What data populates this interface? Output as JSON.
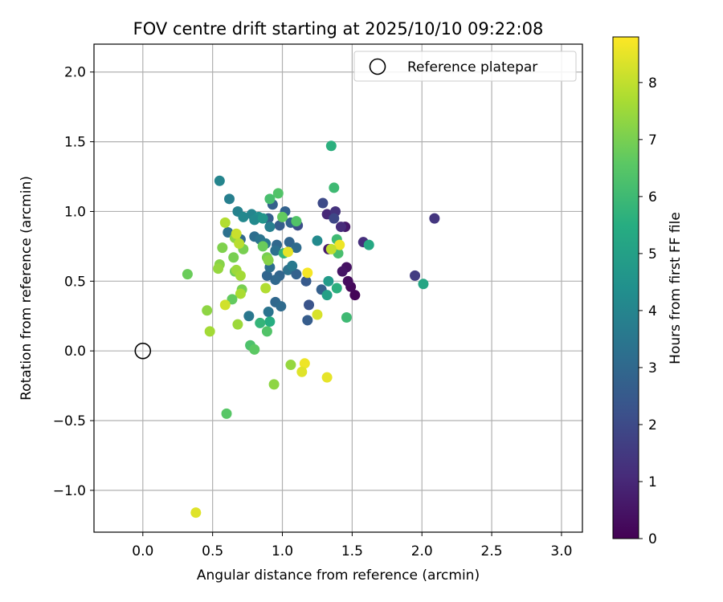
{
  "chart_data": {
    "type": "scatter",
    "title": "FOV centre drift starting at 2025/10/10 09:22:08",
    "xlabel": "Angular distance from reference (arcmin)",
    "ylabel": "Rotation from reference (arcmin)",
    "xlim": [
      -0.35,
      3.15
    ],
    "ylim": [
      -1.3,
      2.2
    ],
    "xticks": [
      0.0,
      0.5,
      1.0,
      1.5,
      2.0,
      2.5,
      3.0
    ],
    "xtick_labels": [
      "0.0",
      "0.5",
      "1.0",
      "1.5",
      "2.0",
      "2.5",
      "3.0"
    ],
    "yticks": [
      -1.0,
      -0.5,
      0.0,
      0.5,
      1.0,
      1.5,
      2.0
    ],
    "ytick_labels": [
      "−1.0",
      "−0.5",
      "0.0",
      "0.5",
      "1.0",
      "1.5",
      "2.0"
    ],
    "grid": true,
    "legend": {
      "location": "upper right",
      "entries": [
        "Reference platepar"
      ]
    },
    "reference": {
      "x": 0.0,
      "y": 0.0,
      "label": "Reference platepar"
    },
    "colorbar": {
      "label": "Hours from first FF file",
      "range": [
        0,
        8.8
      ],
      "ticks": [
        0,
        1,
        2,
        3,
        4,
        5,
        6,
        7,
        8
      ],
      "tick_labels": [
        "0",
        "1",
        "2",
        "3",
        "4",
        "5",
        "6",
        "7",
        "8"
      ],
      "colormap": "viridis"
    },
    "points": [
      {
        "x": 1.52,
        "y": 0.4,
        "c": 0.1
      },
      {
        "x": 1.49,
        "y": 0.46,
        "c": 0.2
      },
      {
        "x": 1.47,
        "y": 0.5,
        "c": 0.3
      },
      {
        "x": 1.46,
        "y": 0.6,
        "c": 0.4
      },
      {
        "x": 1.43,
        "y": 0.57,
        "c": 0.5
      },
      {
        "x": 1.45,
        "y": 0.89,
        "c": 0.6
      },
      {
        "x": 1.33,
        "y": 0.73,
        "c": 0.7
      },
      {
        "x": 1.32,
        "y": 0.98,
        "c": 1.0
      },
      {
        "x": 1.38,
        "y": 1.0,
        "c": 1.3
      },
      {
        "x": 1.58,
        "y": 0.78,
        "c": 1.2
      },
      {
        "x": 1.42,
        "y": 0.89,
        "c": 1.1
      },
      {
        "x": 2.09,
        "y": 0.95,
        "c": 1.4
      },
      {
        "x": 1.95,
        "y": 0.54,
        "c": 1.6
      },
      {
        "x": 1.29,
        "y": 1.06,
        "c": 2.0
      },
      {
        "x": 1.11,
        "y": 0.9,
        "c": 2.1
      },
      {
        "x": 1.17,
        "y": 0.5,
        "c": 2.5
      },
      {
        "x": 1.19,
        "y": 0.33,
        "c": 2.3
      },
      {
        "x": 1.18,
        "y": 0.22,
        "c": 2.6
      },
      {
        "x": 1.28,
        "y": 0.44,
        "c": 2.7
      },
      {
        "x": 1.37,
        "y": 0.95,
        "c": 1.9
      },
      {
        "x": 1.02,
        "y": 1.0,
        "c": 2.8
      },
      {
        "x": 0.93,
        "y": 1.05,
        "c": 2.7
      },
      {
        "x": 0.98,
        "y": 0.9,
        "c": 2.6
      },
      {
        "x": 1.06,
        "y": 0.92,
        "c": 2.8
      },
      {
        "x": 0.9,
        "y": 0.95,
        "c": 2.7
      },
      {
        "x": 0.96,
        "y": 0.76,
        "c": 3.0
      },
      {
        "x": 1.05,
        "y": 0.78,
        "c": 2.9
      },
      {
        "x": 1.1,
        "y": 0.74,
        "c": 3.1
      },
      {
        "x": 1.04,
        "y": 0.58,
        "c": 3.3
      },
      {
        "x": 0.98,
        "y": 0.54,
        "c": 2.9
      },
      {
        "x": 0.95,
        "y": 0.51,
        "c": 3.0
      },
      {
        "x": 0.89,
        "y": 0.54,
        "c": 2.9
      },
      {
        "x": 0.91,
        "y": 0.6,
        "c": 3.2
      },
      {
        "x": 0.95,
        "y": 0.35,
        "c": 3.0
      },
      {
        "x": 0.99,
        "y": 0.32,
        "c": 3.1
      },
      {
        "x": 0.9,
        "y": 0.28,
        "c": 3.4
      },
      {
        "x": 0.76,
        "y": 0.25,
        "c": 3.5
      },
      {
        "x": 1.1,
        "y": 0.55,
        "c": 2.8
      },
      {
        "x": 1.07,
        "y": 0.61,
        "c": 3.6
      },
      {
        "x": 0.95,
        "y": 0.72,
        "c": 3.3
      },
      {
        "x": 0.8,
        "y": 0.82,
        "c": 3.2
      },
      {
        "x": 0.84,
        "y": 0.8,
        "c": 3.4
      },
      {
        "x": 0.88,
        "y": 0.77,
        "c": 3.6
      },
      {
        "x": 0.61,
        "y": 0.85,
        "c": 3.3
      },
      {
        "x": 0.7,
        "y": 0.8,
        "c": 3.0
      },
      {
        "x": 0.62,
        "y": 1.09,
        "c": 3.8
      },
      {
        "x": 0.55,
        "y": 1.22,
        "c": 4.0
      },
      {
        "x": 0.68,
        "y": 1.0,
        "c": 3.9
      },
      {
        "x": 0.72,
        "y": 0.96,
        "c": 4.1
      },
      {
        "x": 0.78,
        "y": 0.98,
        "c": 4.0
      },
      {
        "x": 0.83,
        "y": 0.96,
        "c": 4.4
      },
      {
        "x": 0.8,
        "y": 0.94,
        "c": 4.2
      },
      {
        "x": 0.86,
        "y": 0.95,
        "c": 4.6
      },
      {
        "x": 0.91,
        "y": 0.89,
        "c": 3.8
      },
      {
        "x": 1.25,
        "y": 0.79,
        "c": 4.2
      },
      {
        "x": 1.33,
        "y": 0.5,
        "c": 4.8
      },
      {
        "x": 1.32,
        "y": 0.4,
        "c": 5.0
      },
      {
        "x": 1.39,
        "y": 0.45,
        "c": 5.6
      },
      {
        "x": 1.39,
        "y": 0.8,
        "c": 6.0
      },
      {
        "x": 1.4,
        "y": 0.7,
        "c": 6.2
      },
      {
        "x": 1.46,
        "y": 0.24,
        "c": 6.0
      },
      {
        "x": 1.62,
        "y": 0.76,
        "c": 5.3
      },
      {
        "x": 2.01,
        "y": 0.48,
        "c": 5.2
      },
      {
        "x": 1.35,
        "y": 1.47,
        "c": 5.6
      },
      {
        "x": 1.37,
        "y": 1.17,
        "c": 6.0
      },
      {
        "x": 0.91,
        "y": 0.21,
        "c": 5.5
      },
      {
        "x": 0.84,
        "y": 0.2,
        "c": 5.8
      },
      {
        "x": 0.89,
        "y": 0.14,
        "c": 6.4
      },
      {
        "x": 0.77,
        "y": 0.04,
        "c": 6.3
      },
      {
        "x": 0.8,
        "y": 0.01,
        "c": 6.6
      },
      {
        "x": 0.91,
        "y": 1.09,
        "c": 6.2
      },
      {
        "x": 0.97,
        "y": 1.13,
        "c": 6.4
      },
      {
        "x": 1.1,
        "y": 0.93,
        "c": 6.4
      },
      {
        "x": 1.0,
        "y": 0.96,
        "c": 6.7
      },
      {
        "x": 1.01,
        "y": 0.7,
        "c": 5.8
      },
      {
        "x": 0.86,
        "y": 0.75,
        "c": 6.8
      },
      {
        "x": 0.89,
        "y": 0.67,
        "c": 7.0
      },
      {
        "x": 0.9,
        "y": 0.65,
        "c": 7.2
      },
      {
        "x": 0.72,
        "y": 0.73,
        "c": 7.0
      },
      {
        "x": 0.66,
        "y": 0.81,
        "c": 7.3
      },
      {
        "x": 0.57,
        "y": 0.74,
        "c": 7.1
      },
      {
        "x": 0.65,
        "y": 0.67,
        "c": 7.0
      },
      {
        "x": 0.55,
        "y": 0.62,
        "c": 7.2
      },
      {
        "x": 0.54,
        "y": 0.59,
        "c": 7.4
      },
      {
        "x": 0.66,
        "y": 0.57,
        "c": 6.9
      },
      {
        "x": 0.67,
        "y": 0.58,
        "c": 7.5
      },
      {
        "x": 0.7,
        "y": 0.54,
        "c": 7.6
      },
      {
        "x": 0.32,
        "y": 0.55,
        "c": 6.8
      },
      {
        "x": 0.71,
        "y": 0.44,
        "c": 7.0
      },
      {
        "x": 0.7,
        "y": 0.41,
        "c": 7.7
      },
      {
        "x": 0.64,
        "y": 0.37,
        "c": 6.7
      },
      {
        "x": 0.59,
        "y": 0.33,
        "c": 8.2
      },
      {
        "x": 0.46,
        "y": 0.29,
        "c": 7.3
      },
      {
        "x": 0.68,
        "y": 0.19,
        "c": 7.5
      },
      {
        "x": 0.48,
        "y": 0.14,
        "c": 7.6
      },
      {
        "x": 0.88,
        "y": 0.45,
        "c": 7.8
      },
      {
        "x": 0.59,
        "y": 0.92,
        "c": 7.8
      },
      {
        "x": 0.67,
        "y": 0.84,
        "c": 8.1
      },
      {
        "x": 0.69,
        "y": 0.77,
        "c": 7.9
      },
      {
        "x": 1.06,
        "y": -0.1,
        "c": 7.4
      },
      {
        "x": 0.94,
        "y": -0.24,
        "c": 7.3
      },
      {
        "x": 1.16,
        "y": -0.09,
        "c": 8.6
      },
      {
        "x": 1.14,
        "y": -0.15,
        "c": 8.4
      },
      {
        "x": 1.32,
        "y": -0.19,
        "c": 8.5
      },
      {
        "x": 1.25,
        "y": 0.26,
        "c": 8.3
      },
      {
        "x": 1.18,
        "y": 0.56,
        "c": 8.7
      },
      {
        "x": 1.41,
        "y": 0.76,
        "c": 8.6
      },
      {
        "x": 1.35,
        "y": 0.73,
        "c": 8.0
      },
      {
        "x": 1.04,
        "y": 0.71,
        "c": 8.5
      },
      {
        "x": 0.6,
        "y": -0.45,
        "c": 6.5
      },
      {
        "x": 0.38,
        "y": -1.16,
        "c": 8.4
      }
    ]
  }
}
